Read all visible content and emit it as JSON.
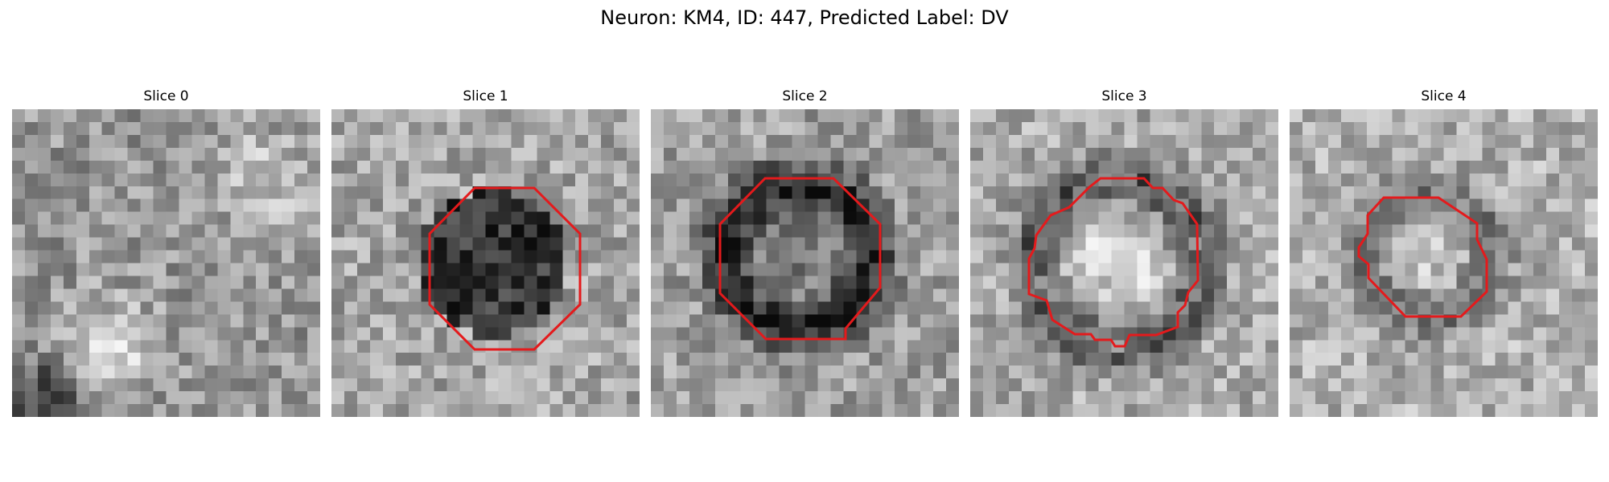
{
  "suptitle": "Neuron: KM4, ID: 447, Predicted Label: DV",
  "contour_color": "#e41a1c",
  "panels": [
    {
      "title": "Slice 0",
      "has_contour": false
    },
    {
      "title": "Slice 1",
      "has_contour": true
    },
    {
      "title": "Slice 2",
      "has_contour": true
    },
    {
      "title": "Slice 3",
      "has_contour": true
    },
    {
      "title": "Slice 4",
      "has_contour": true
    }
  ]
}
